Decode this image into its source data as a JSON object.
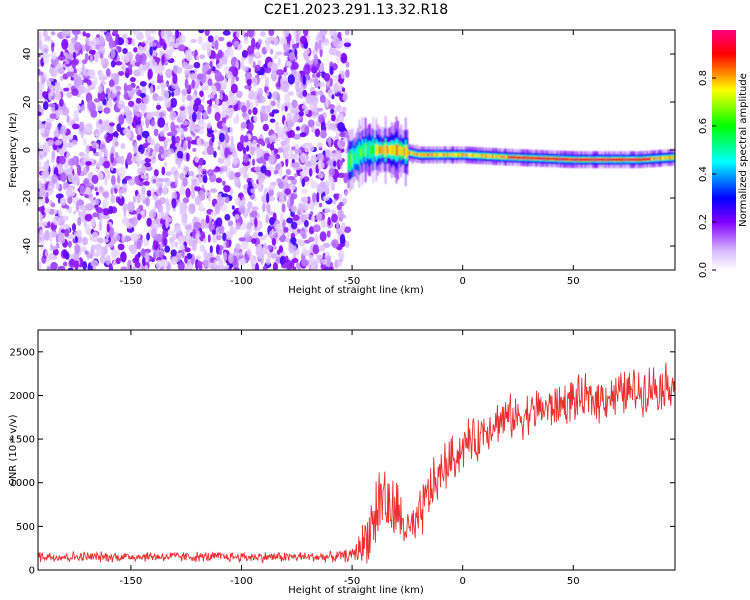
{
  "figure_title": "C2E1.2023.291.13.32.R18",
  "chart_data": [
    {
      "type": "heatmap",
      "xlabel": "Height of straight line (km)",
      "ylabel": "Frequency (Hz)",
      "xlim": [
        -192,
        96
      ],
      "ylim": [
        -50,
        50
      ],
      "xticks": [
        -150,
        -100,
        -50,
        0,
        50
      ],
      "yticks": [
        -40,
        -20,
        0,
        20,
        40
      ],
      "grid": false,
      "colorbar": {
        "label": "Normalized spectral amplitude",
        "range": [
          0,
          1
        ],
        "ticks": [
          0.0,
          0.2,
          0.4,
          0.6,
          0.8
        ],
        "colormap": [
          "#ffffff",
          "#d8b8ff",
          "#8000ff",
          "#0000ff",
          "#00ffff",
          "#00ff00",
          "#ffff00",
          "#ff0000",
          "#ff0080"
        ]
      },
      "regions": [
        {
          "kind": "noise",
          "x_range": [
            -192,
            -52
          ],
          "y_range": [
            -50,
            50
          ],
          "amplitude": "low"
        },
        {
          "kind": "carrier",
          "x_range": [
            -52,
            96
          ],
          "frequency_at": [
            [
              -52,
              -5
            ],
            [
              -45,
              0
            ],
            [
              -30,
              0
            ],
            [
              -20,
              -2
            ],
            [
              0,
              -2
            ],
            [
              20,
              -3
            ],
            [
              50,
              -4
            ],
            [
              80,
              -4
            ],
            [
              96,
              -3
            ]
          ],
          "amplitude": "high"
        }
      ]
    },
    {
      "type": "line",
      "xlabel": "Height of straight line (km)",
      "ylabel": "SNR (10 * v/v)",
      "xlim": [
        -192,
        96
      ],
      "ylim": [
        0,
        2750
      ],
      "xticks": [
        -150,
        -100,
        -50,
        0,
        50
      ],
      "yticks": [
        0,
        500,
        1000,
        1500,
        2000,
        2500
      ],
      "grid": false,
      "series": [
        {
          "color": "#e83030",
          "x": [
            -192,
            -180,
            -160,
            -140,
            -120,
            -100,
            -80,
            -60,
            -50,
            -45,
            -40,
            -36,
            -33,
            -30,
            -27,
            -24,
            -21,
            -18,
            -15,
            -12,
            -9,
            -6,
            -3,
            0,
            3,
            6,
            9,
            12,
            15,
            20,
            25,
            30,
            35,
            40,
            45,
            50,
            55,
            60,
            65,
            70,
            75,
            80,
            85,
            90,
            96
          ],
          "y": [
            160,
            150,
            150,
            155,
            150,
            150,
            150,
            150,
            170,
            300,
            600,
            900,
            650,
            700,
            520,
            450,
            480,
            700,
            900,
            1000,
            1150,
            1250,
            1300,
            1400,
            1500,
            1450,
            1600,
            1650,
            1700,
            1750,
            1750,
            1800,
            1850,
            1850,
            1900,
            1950,
            1950,
            1950,
            2000,
            2000,
            2050,
            2050,
            2100,
            2100,
            2150
          ],
          "noise_amplitude": [
            80,
            70,
            70,
            70,
            70,
            70,
            70,
            70,
            90,
            300,
            500,
            600,
            450,
            450,
            350,
            300,
            300,
            400,
            400,
            350,
            350,
            350,
            300,
            300,
            300,
            300,
            300,
            300,
            300,
            300,
            300,
            300,
            300,
            300,
            300,
            300,
            320,
            320,
            320,
            320,
            320,
            320,
            320,
            320,
            320
          ]
        }
      ]
    }
  ]
}
